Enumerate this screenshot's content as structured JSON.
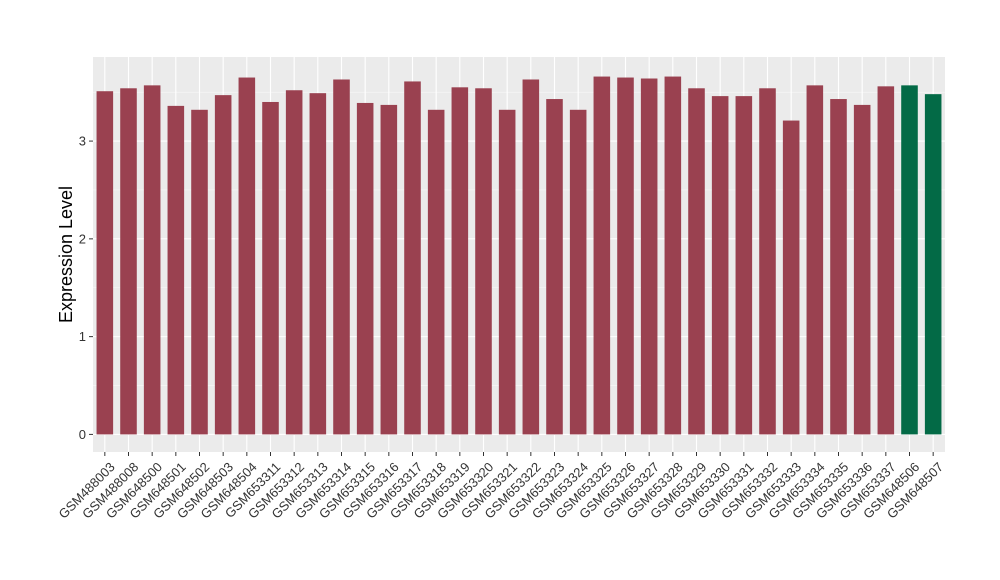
{
  "chart_data": {
    "type": "bar",
    "title": "",
    "xlabel": "",
    "ylabel": "Expression Level",
    "ylim": [
      -0.18,
      3.86
    ],
    "yticks": [
      0,
      1,
      2,
      3
    ],
    "grid": true,
    "legend": "none",
    "colors": {
      "panel_background": "#ebebeb",
      "grid": "#ffffff",
      "default_bar": "#9a4150",
      "highlight_bar": "#036a46"
    },
    "categories": [
      "GSM488003",
      "GSM488008",
      "GSM648500",
      "GSM648501",
      "GSM648502",
      "GSM648503",
      "GSM648504",
      "GSM653311",
      "GSM653312",
      "GSM653313",
      "GSM653314",
      "GSM653315",
      "GSM653316",
      "GSM653317",
      "GSM653318",
      "GSM653319",
      "GSM653320",
      "GSM653321",
      "GSM653322",
      "GSM653323",
      "GSM653324",
      "GSM653325",
      "GSM653326",
      "GSM653327",
      "GSM653328",
      "GSM653329",
      "GSM653330",
      "GSM653331",
      "GSM653332",
      "GSM653333",
      "GSM653334",
      "GSM653335",
      "GSM653336",
      "GSM653337",
      "GSM648506",
      "GSM648507"
    ],
    "values": [
      3.51,
      3.54,
      3.57,
      3.36,
      3.32,
      3.47,
      3.65,
      3.4,
      3.52,
      3.49,
      3.63,
      3.39,
      3.37,
      3.61,
      3.32,
      3.55,
      3.54,
      3.32,
      3.63,
      3.43,
      3.32,
      3.66,
      3.65,
      3.64,
      3.66,
      3.54,
      3.46,
      3.46,
      3.54,
      3.21,
      3.57,
      3.43,
      3.37,
      3.56,
      3.57,
      3.48
    ],
    "bar_groups": [
      "default",
      "default",
      "default",
      "default",
      "default",
      "default",
      "default",
      "default",
      "default",
      "default",
      "default",
      "default",
      "default",
      "default",
      "default",
      "default",
      "default",
      "default",
      "default",
      "default",
      "default",
      "default",
      "default",
      "default",
      "default",
      "default",
      "default",
      "default",
      "default",
      "default",
      "default",
      "default",
      "default",
      "default",
      "highlight",
      "highlight"
    ]
  }
}
